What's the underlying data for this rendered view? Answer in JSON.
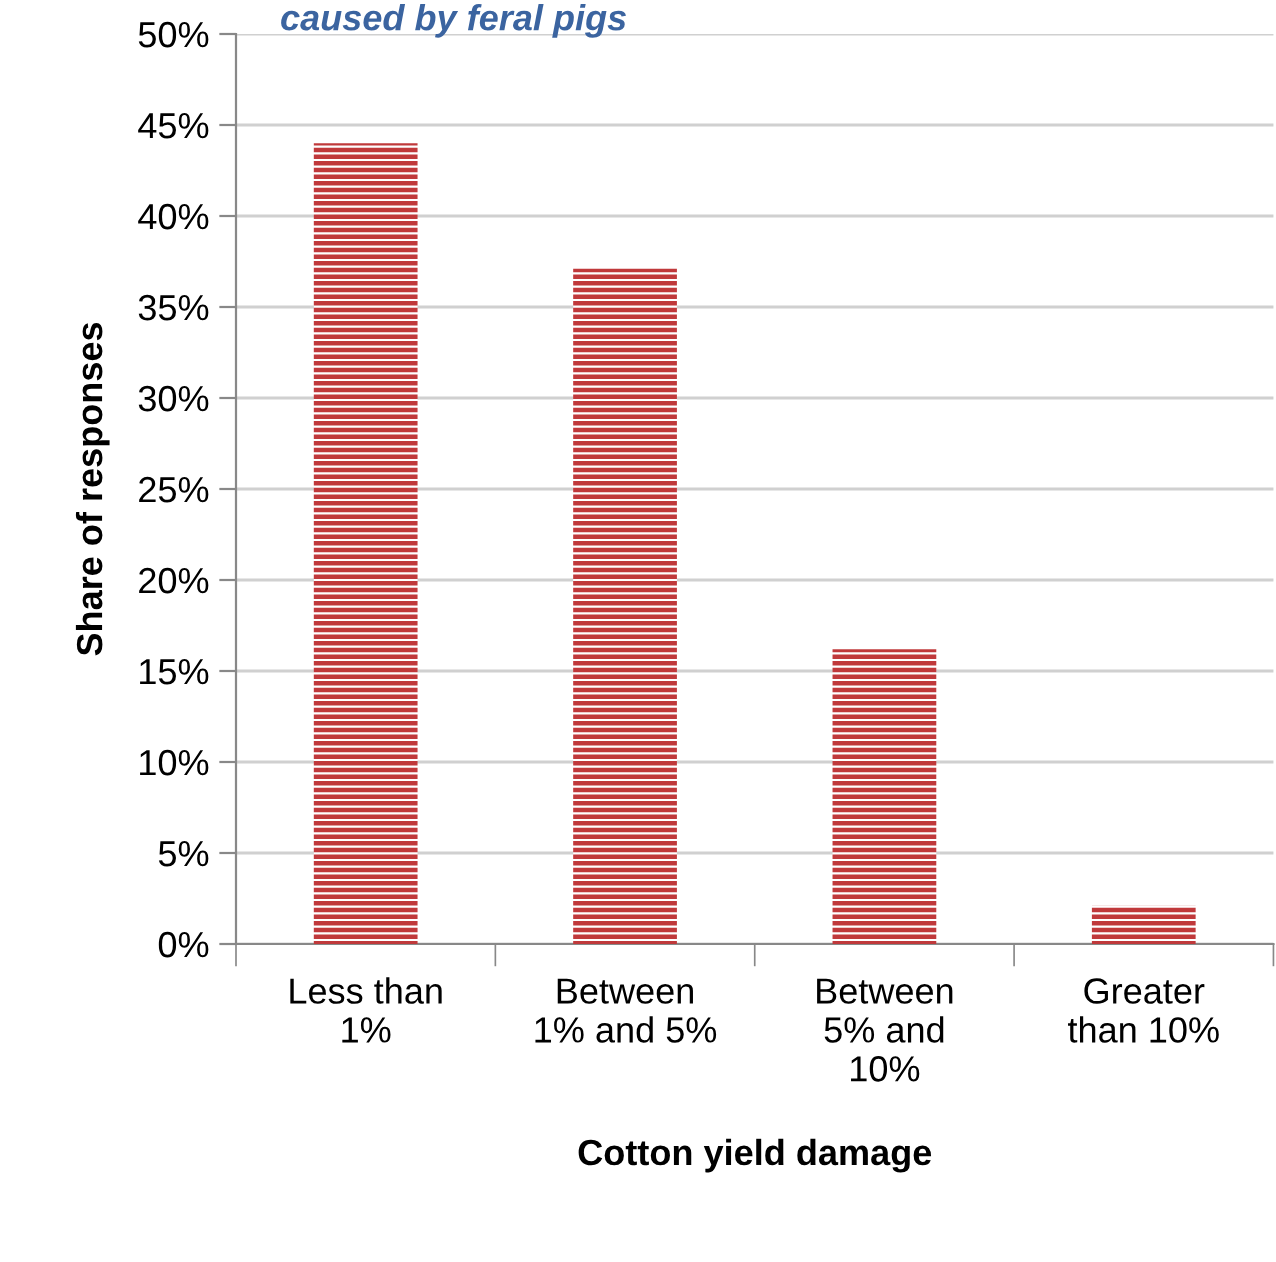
{
  "chart_data": {
    "type": "bar",
    "title": "caused by feral pigs",
    "xlabel": "Cotton yield damage",
    "ylabel": "Share of responses",
    "categories": [
      "Less than\n1%",
      "Between\n1% and 5%",
      "Between\n5% and\n10%",
      "Greater\nthan 10%"
    ],
    "values": [
      44.0,
      37.1,
      16.2,
      2.1
    ],
    "color": "#c0393b",
    "ylim": [
      0,
      50
    ],
    "yticks": [
      {
        "value": 0,
        "label": "0%"
      },
      {
        "value": 5,
        "label": "5%"
      },
      {
        "value": 10,
        "label": "10%"
      },
      {
        "value": 15,
        "label": "15%"
      },
      {
        "value": 20,
        "label": "20%"
      },
      {
        "value": 25,
        "label": "25%"
      },
      {
        "value": 30,
        "label": "30%"
      },
      {
        "value": 35,
        "label": "35%"
      },
      {
        "value": 40,
        "label": "40%"
      },
      {
        "value": 45,
        "label": "45%"
      },
      {
        "value": 50,
        "label": "50%"
      }
    ],
    "grid": "y",
    "legend": false
  }
}
